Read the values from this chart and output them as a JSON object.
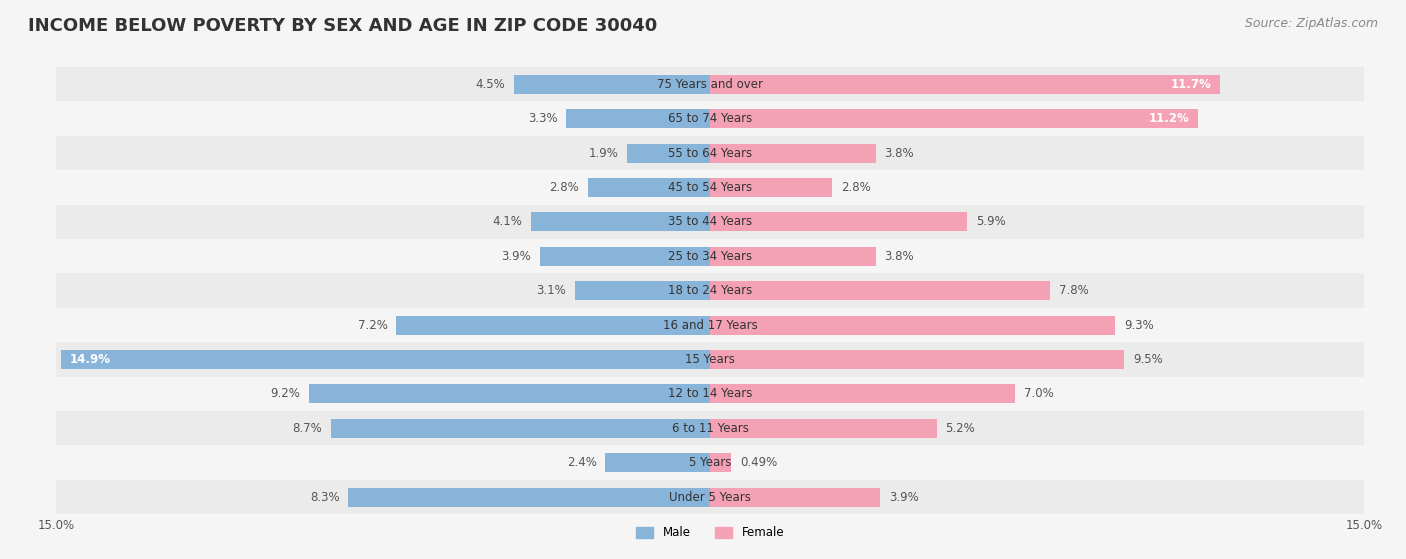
{
  "title": "INCOME BELOW POVERTY BY SEX AND AGE IN ZIP CODE 30040",
  "source": "Source: ZipAtlas.com",
  "categories": [
    "Under 5 Years",
    "5 Years",
    "6 to 11 Years",
    "12 to 14 Years",
    "15 Years",
    "16 and 17 Years",
    "18 to 24 Years",
    "25 to 34 Years",
    "35 to 44 Years",
    "45 to 54 Years",
    "55 to 64 Years",
    "65 to 74 Years",
    "75 Years and over"
  ],
  "male": [
    8.3,
    2.4,
    8.7,
    9.2,
    14.9,
    7.2,
    3.1,
    3.9,
    4.1,
    2.8,
    1.9,
    3.3,
    4.5
  ],
  "female": [
    3.9,
    0.49,
    5.2,
    7.0,
    9.5,
    9.3,
    7.8,
    3.8,
    5.9,
    2.8,
    3.8,
    11.2,
    11.7
  ],
  "male_color": "#89b4d9",
  "female_color": "#f4a0b5",
  "male_label": "Male",
  "female_label": "Female",
  "xlim": 15.0,
  "x_axis_label_left": "15.0%",
  "x_axis_label_right": "15.0%",
  "bg_color": "#f5f5f5",
  "row_color_odd": "#ebebeb",
  "row_color_even": "#f5f5f5",
  "title_fontsize": 13,
  "source_fontsize": 9,
  "label_fontsize": 8.5,
  "category_fontsize": 8.5,
  "bar_height": 0.55
}
